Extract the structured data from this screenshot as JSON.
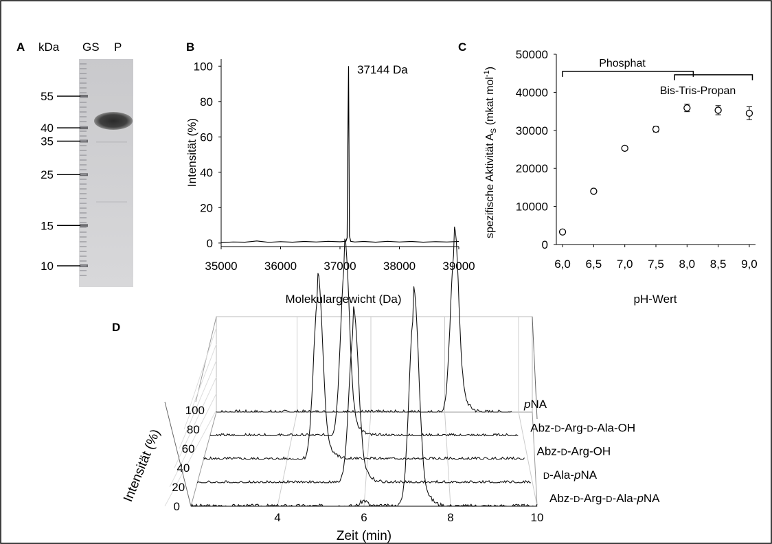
{
  "panels": {
    "A": {
      "letter": "A",
      "unit_label": "kDa",
      "lanes": [
        "GS",
        "P"
      ],
      "markers": [
        55,
        40,
        35,
        25,
        15,
        10
      ],
      "marker_labels": [
        "55",
        "40",
        "35",
        "25",
        "15",
        "10"
      ]
    },
    "B": {
      "letter": "B",
      "annotation": "37144 Da",
      "ylabel": "Intensität (%)",
      "xlabel": "Molekulargewicht (Da)"
    },
    "C": {
      "letter": "C",
      "ylabel_main": "spezifische Aktivität A",
      "ylabel_sub": "S",
      "ylabel_unit": " (mkat mol",
      "ylabel_sup": "-1",
      "ylabel_close": ")",
      "xlabel": "pH-Wert",
      "buffer_1": "Phosphat",
      "buffer_2": "Bis-Tris-Propan"
    },
    "D": {
      "letter": "D",
      "ylabel": "Intensität (%)",
      "xlabel": "Zeit (min)"
    }
  },
  "chart_data": [
    {
      "type": "line",
      "panel": "B",
      "x_ticks": [
        35000,
        36000,
        37000,
        38000,
        39000
      ],
      "x_tick_labels": [
        "35000",
        "36000",
        "37000",
        "38000",
        "39000"
      ],
      "y_ticks": [
        0,
        20,
        40,
        60,
        80,
        100
      ],
      "y_tick_labels": [
        "0",
        "20",
        "40",
        "60",
        "80",
        "100"
      ],
      "xlim": [
        35000,
        39000
      ],
      "ylim": [
        -2,
        104
      ],
      "peak_x": 37144,
      "peak_y": 100,
      "series": [
        {
          "x": [
            35000,
            35200,
            35400,
            35600,
            35800,
            36000,
            36200,
            36400,
            36600,
            36800,
            37000,
            37100,
            37120,
            37135,
            37144,
            37150,
            37160,
            37180,
            37250,
            37400,
            37600,
            37800,
            38000,
            38200,
            38400,
            38600,
            38800,
            39000
          ],
          "y": [
            0.3,
            0.6,
            0.5,
            1.2,
            0.4,
            0.8,
            0.5,
            0.9,
            0.6,
            1.0,
            0.7,
            1.0,
            3,
            70,
            100,
            60,
            4,
            1.0,
            0.6,
            0.9,
            0.5,
            1.0,
            0.6,
            0.9,
            0.5,
            0.8,
            0.6,
            0.9
          ]
        }
      ]
    },
    {
      "type": "scatter",
      "panel": "C",
      "x_ticks": [
        6.0,
        6.5,
        7.0,
        7.5,
        8.0,
        8.5,
        9.0
      ],
      "x_tick_labels": [
        "6,0",
        "6,5",
        "7,0",
        "7,5",
        "8,0",
        "8,5",
        "9,0"
      ],
      "y_ticks": [
        0,
        10000,
        20000,
        30000,
        40000,
        50000
      ],
      "y_tick_labels": [
        "0",
        "10000",
        "20000",
        "30000",
        "40000",
        "50000"
      ],
      "xlim": [
        5.9,
        9.1
      ],
      "ylim": [
        0,
        50000
      ],
      "buffer_ranges": [
        [
          6.0,
          8.1
        ],
        [
          7.8,
          9.05
        ]
      ],
      "series": [
        {
          "x": [
            6.0,
            6.5,
            7.0,
            7.5,
            8.0,
            8.5,
            9.0
          ],
          "y": [
            3300,
            14000,
            25300,
            30300,
            35900,
            35300,
            34500
          ],
          "err": [
            300,
            400,
            500,
            700,
            1000,
            1200,
            1700
          ]
        }
      ]
    },
    {
      "type": "line",
      "panel": "D",
      "x_ticks": [
        4,
        6,
        8,
        10
      ],
      "x_tick_labels": [
        "4",
        "6",
        "8",
        "10"
      ],
      "z_ticks": [
        0,
        20,
        40,
        60,
        80,
        100
      ],
      "z_tick_labels": [
        "0",
        "20",
        "40",
        "60",
        "80",
        "100"
      ],
      "xlim": [
        2,
        10
      ],
      "zlim": [
        0,
        100
      ],
      "series": [
        {
          "name": "Abz-D-Arg-D-Ala-pNA",
          "display": [
            "Abz-",
            "D",
            "-Arg-",
            "D",
            "-Ala-",
            "p",
            "NA"
          ],
          "peak_x": 7.15,
          "peak_y": 100,
          "minor": [
            [
              6.0,
              3
            ]
          ]
        },
        {
          "name": "D-Ala-pNA",
          "display": [
            "D",
            "-Ala-",
            "p",
            "NA"
          ],
          "peak_x": 5.75,
          "peak_y": 80,
          "minor": []
        },
        {
          "name": "Abz-D-Arg-OH",
          "display": [
            "Abz-",
            "D",
            "-Arg-OH"
          ],
          "peak_x": 4.85,
          "peak_y": 85,
          "minor": []
        },
        {
          "name": "Abz-D-Arg-D-Ala-OH",
          "display": [
            "Abz-",
            "D",
            "-Arg-",
            "D",
            "-Ala-OH"
          ],
          "peak_x": 5.5,
          "peak_y": 90,
          "minor": []
        },
        {
          "name": "pNA",
          "display": [
            "p",
            "NA"
          ],
          "peak_x": 8.45,
          "peak_y": 85,
          "minor": []
        }
      ]
    }
  ]
}
